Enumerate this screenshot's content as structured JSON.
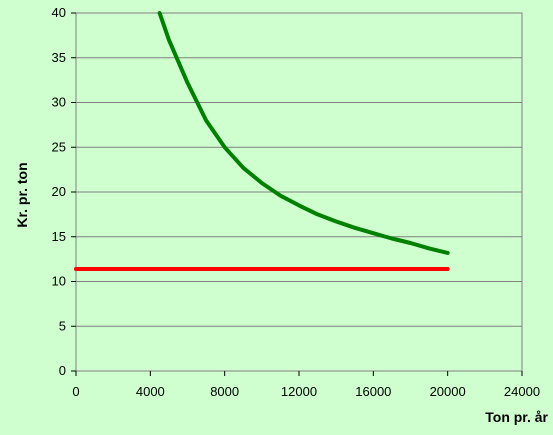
{
  "chart_data": {
    "type": "line",
    "title": "",
    "xlabel": "Ton pr. år",
    "ylabel": "Kr. pr. ton",
    "xlim": [
      0,
      24000
    ],
    "ylim": [
      0,
      40
    ],
    "x_ticks": [
      0,
      4000,
      8000,
      12000,
      16000,
      20000,
      24000
    ],
    "y_ticks": [
      0,
      5,
      10,
      15,
      20,
      25,
      30,
      35,
      40
    ],
    "grid": "horizontal",
    "legend": "none",
    "series": [
      {
        "color": "#008000",
        "x": [
          4500,
          5000,
          6000,
          7000,
          8000,
          9000,
          10000,
          11000,
          12000,
          13000,
          14000,
          15000,
          16000,
          17000,
          18000,
          19000,
          20000
        ],
        "y": [
          40.0,
          37.0,
          32.2,
          28.0,
          25.0,
          22.7,
          21.0,
          19.6,
          18.5,
          17.5,
          16.7,
          16.0,
          15.4,
          14.8,
          14.3,
          13.7,
          13.2
        ]
      },
      {
        "color": "#ff0000",
        "x": [
          0,
          20000
        ],
        "y": [
          11.4,
          11.4
        ]
      }
    ]
  }
}
